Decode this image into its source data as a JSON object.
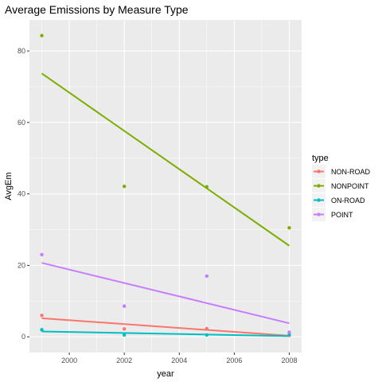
{
  "chart_data": {
    "type": "scatter",
    "title": "Average Emissions by Measure Type",
    "xlabel": "year",
    "ylabel": "AvgEm",
    "xlim": [
      1998.55,
      2008.45
    ],
    "ylim": [
      -4.4,
      88.7
    ],
    "x_ticks": [
      2000,
      2002,
      2004,
      2006,
      2008
    ],
    "y_ticks": [
      0,
      20,
      40,
      60,
      80
    ],
    "grid": true,
    "legend": {
      "title": "type",
      "placement": "right"
    },
    "series": [
      {
        "name": "NON-ROAD",
        "color": "#F8766D",
        "x": [
          1999,
          2002,
          2005,
          2008
        ],
        "y": [
          6.0,
          2.2,
          2.3,
          0.4
        ],
        "fit": [
          5.2,
          0.3
        ]
      },
      {
        "name": "NONPOINT",
        "color": "#7CAE00",
        "x": [
          1999,
          2002,
          2005,
          2008
        ],
        "y": [
          84.3,
          42.1,
          42.0,
          30.5
        ],
        "fit": [
          73.7,
          25.5
        ]
      },
      {
        "name": "ON-ROAD",
        "color": "#00BFC4",
        "x": [
          1999,
          2002,
          2005,
          2008
        ],
        "y": [
          2.0,
          0.5,
          0.5,
          0.6
        ],
        "fit": [
          1.5,
          0.2
        ]
      },
      {
        "name": "POINT",
        "color": "#C77CFF",
        "x": [
          1999,
          2002,
          2005,
          2008
        ],
        "y": [
          23.0,
          8.6,
          17.0,
          1.3
        ],
        "fit": [
          20.7,
          3.8
        ]
      }
    ]
  }
}
